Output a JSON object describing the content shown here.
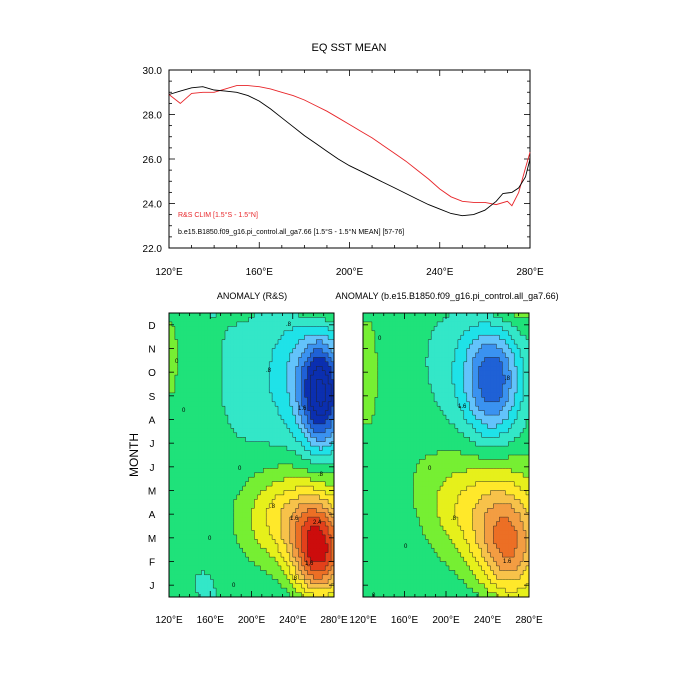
{
  "colors": {
    "obs_line": "#e8262a",
    "model_line": "#000000",
    "contour_line": "#222222",
    "fill_levels": [
      "#0b2fb0",
      "#1f61d6",
      "#3a92f0",
      "#63c3fb",
      "#1fe2e8",
      "#33e7c8",
      "#1fe27a",
      "#76ef33",
      "#e6f01b",
      "#ffe82a",
      "#f7c24a",
      "#f39d42",
      "#ec6f25",
      "#e3401b",
      "#cc0c0c"
    ]
  },
  "chart_data": [
    {
      "type": "line",
      "title": "EQ SST MEAN",
      "xlim": [
        120,
        280
      ],
      "ylim": [
        22,
        30
      ],
      "x_tick_labels": [
        "120°E",
        "160°E",
        "200°E",
        "240°E",
        "280°E"
      ],
      "y_tick_labels": [
        "22.0",
        "24.0",
        "26.0",
        "28.0",
        "30.0"
      ],
      "series": [
        {
          "name": "R&S CLIM [1.5°S - 1.5°N]",
          "color": "#e8262a",
          "x": [
            120,
            125,
            130,
            135,
            140,
            145,
            150,
            155,
            160,
            165,
            170,
            175,
            180,
            185,
            190,
            195,
            200,
            205,
            210,
            215,
            220,
            225,
            230,
            235,
            240,
            245,
            250,
            255,
            260,
            265,
            270,
            272,
            275,
            278,
            280
          ],
          "y": [
            28.9,
            28.5,
            28.95,
            29.0,
            29.0,
            29.15,
            29.3,
            29.3,
            29.25,
            29.15,
            29.0,
            28.85,
            28.65,
            28.4,
            28.15,
            27.85,
            27.55,
            27.25,
            26.95,
            26.6,
            26.25,
            25.9,
            25.5,
            25.1,
            24.65,
            24.3,
            24.1,
            24.05,
            24.05,
            23.95,
            24.1,
            23.9,
            24.5,
            25.6,
            26.3
          ]
        },
        {
          "name": "b.e15.B1850.f09_g16.pi_control.all_ga7.66 [1.5°S - 1.5°N MEAN] [57-76]",
          "color": "#000000",
          "x": [
            120,
            125,
            130,
            135,
            140,
            145,
            150,
            155,
            160,
            165,
            170,
            175,
            180,
            185,
            190,
            195,
            200,
            205,
            210,
            215,
            220,
            225,
            230,
            235,
            240,
            245,
            250,
            255,
            260,
            265,
            268,
            272,
            275,
            278,
            280
          ],
          "y": [
            28.9,
            29.05,
            29.2,
            29.25,
            29.1,
            29.05,
            29.0,
            28.85,
            28.6,
            28.25,
            27.85,
            27.45,
            27.05,
            26.7,
            26.35,
            26.0,
            25.7,
            25.45,
            25.2,
            24.95,
            24.7,
            24.45,
            24.2,
            23.95,
            23.75,
            23.55,
            23.45,
            23.5,
            23.7,
            24.1,
            24.45,
            24.5,
            24.7,
            25.2,
            26.0
          ]
        }
      ]
    },
    {
      "type": "heatmap",
      "title": "ANOMALY (R&S)",
      "ylabel": "MONTH",
      "xlim": [
        120,
        280
      ],
      "x_tick_labels": [
        "120°E",
        "160°E",
        "200°E",
        "240°E",
        "280°E"
      ],
      "y_tick_labels": [
        "J",
        "F",
        "M",
        "A",
        "M",
        "J",
        "J",
        "A",
        "S",
        "O",
        "N",
        "D"
      ],
      "contour_labels": [
        "0",
        "0",
        "0",
        "0",
        "0",
        ".8",
        ".8",
        "1.6",
        ".8",
        ".8",
        "1.6",
        "2.4",
        "1.6",
        ".8"
      ],
      "features": [
        {
          "lon": 265,
          "month": 2.3,
          "value": 2.9,
          "slon": 18,
          "smon": 1.4
        },
        {
          "lon": 235,
          "month": 3.8,
          "value": 1.2,
          "slon": 30,
          "smon": 1.3
        },
        {
          "lon": 268,
          "month": 8.6,
          "value": -2.4,
          "slon": 14,
          "smon": 1.5
        },
        {
          "lon": 255,
          "month": 9.8,
          "value": -1.0,
          "slon": 28,
          "smon": 2.0
        },
        {
          "lon": 200,
          "month": 8.5,
          "value": -0.4,
          "slon": 45,
          "smon": 3.0
        },
        {
          "lon": 150,
          "month": 1.5,
          "value": -0.3,
          "slon": 30,
          "smon": 2.0
        },
        {
          "lon": 123,
          "month": 10.5,
          "value": 0.3,
          "slon": 6,
          "smon": 1.5
        }
      ]
    },
    {
      "type": "heatmap",
      "title": "ANOMALY (b.e15.B1850.f09_g16.pi_control.all_ga7.66)",
      "xlim": [
        120,
        280
      ],
      "x_tick_labels": [
        "120°E",
        "160°E",
        "200°E",
        "240°E",
        "280°E"
      ],
      "y_tick_labels": [
        "J",
        "F",
        "M",
        "A",
        "M",
        "J",
        "J",
        "A",
        "S",
        "O",
        "N",
        "D"
      ],
      "contour_labels": [
        "0",
        "0",
        "0",
        ".8",
        "1.6",
        "1.6",
        ".8",
        "0"
      ],
      "features": [
        {
          "lon": 260,
          "month": 2.5,
          "value": 2.0,
          "slon": 22,
          "smon": 1.6
        },
        {
          "lon": 225,
          "month": 4.2,
          "value": 0.9,
          "slon": 35,
          "smon": 1.4
        },
        {
          "lon": 245,
          "month": 9.2,
          "value": -1.7,
          "slon": 18,
          "smon": 1.6
        },
        {
          "lon": 230,
          "month": 9.8,
          "value": -0.7,
          "slon": 40,
          "smon": 2.0
        },
        {
          "lon": 150,
          "month": 2.5,
          "value": -0.35,
          "slon": 30,
          "smon": 2.0
        },
        {
          "lon": 125,
          "month": 10.0,
          "value": 0.3,
          "slon": 6,
          "smon": 1.5
        }
      ]
    }
  ],
  "layout_labels": {
    "bottom_x_labels_left": [
      "120°E",
      "160°E",
      "200°E",
      "240°E",
      "280°E"
    ],
    "bottom_x_labels_right": [
      "120°E",
      "160°E",
      "200°E",
      "240°E",
      "280°E"
    ]
  }
}
